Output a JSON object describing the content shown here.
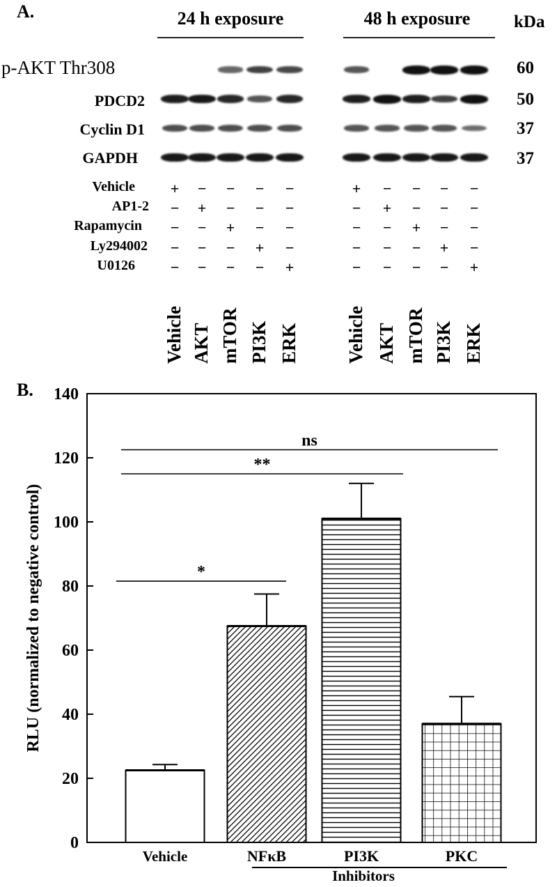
{
  "panel_a": {
    "label": "A.",
    "headers": [
      "24 h exposure",
      "48 h exposure"
    ],
    "kda_label": "kDa",
    "rows": [
      {
        "name": "p-AKT Thr308",
        "kda": "60"
      },
      {
        "name": "PDCD2",
        "kda": "50"
      },
      {
        "name": "Cyclin D1",
        "kda": "37"
      },
      {
        "name": "GAPDH",
        "kda": "37"
      }
    ],
    "treatments": [
      {
        "name": "Vehicle",
        "signs": [
          "+",
          "−",
          "−",
          "−",
          "−",
          "+",
          "−",
          "−",
          "−",
          "−"
        ]
      },
      {
        "name": "AP1-2",
        "signs": [
          "−",
          "+",
          "−",
          "−",
          "−",
          "−",
          "+",
          "−",
          "−",
          "−"
        ]
      },
      {
        "name": "Rapamycin",
        "signs": [
          "−",
          "−",
          "+",
          "−",
          "−",
          "−",
          "−",
          "+",
          "−",
          "−"
        ]
      },
      {
        "name": "Ly294002",
        "signs": [
          "−",
          "−",
          "−",
          "+",
          "−",
          "−",
          "−",
          "−",
          "+",
          "−"
        ]
      },
      {
        "name": "U0126",
        "signs": [
          "−",
          "−",
          "−",
          "−",
          "+",
          "−",
          "−",
          "−",
          "−",
          "+"
        ]
      }
    ],
    "lane_labels": [
      "Vehicle",
      "AKT",
      "mTOR",
      "PI3K",
      "ERK",
      "Vehicle",
      "AKT",
      "mTOR",
      "PI3K",
      "ERK"
    ],
    "band_intensity": {
      "p-AKT Thr308": [
        0,
        0,
        0.45,
        0.7,
        0.65,
        0.55,
        0,
        1.0,
        1.0,
        1.0
      ],
      "PDCD2": [
        0.9,
        0.95,
        0.85,
        0.55,
        0.85,
        0.9,
        1.0,
        0.9,
        0.7,
        1.0
      ],
      "Cyclin D1": [
        0.6,
        0.6,
        0.6,
        0.6,
        0.6,
        0.55,
        0.55,
        0.55,
        0.55,
        0.4
      ],
      "GAPDH": [
        0.95,
        0.95,
        0.95,
        0.95,
        0.95,
        0.95,
        0.95,
        0.95,
        0.95,
        0.95
      ]
    }
  },
  "chart_data": {
    "type": "bar",
    "panel_label": "B.",
    "categories": [
      "Vehicle",
      "NFκB",
      "PI3K",
      "PKC"
    ],
    "values": [
      22.5,
      67.5,
      101,
      37
    ],
    "errors": [
      1.8,
      10,
      11,
      8.5
    ],
    "patterns": [
      "none",
      "diagonal",
      "horizontal",
      "grid"
    ],
    "ylabel": "RLU (normalized to negative control)",
    "xlabel": "",
    "ylim": [
      0,
      140
    ],
    "yticks": [
      0,
      20,
      40,
      60,
      80,
      100,
      120,
      140
    ],
    "group_label": "Inhibitors",
    "significance": [
      {
        "from": 0,
        "to": 1,
        "y": 81.5,
        "label": "*"
      },
      {
        "from": 0,
        "to": 2,
        "y": 115,
        "label": "**"
      },
      {
        "from": 0,
        "to": 3,
        "y": 122.5,
        "label": "ns"
      }
    ]
  }
}
